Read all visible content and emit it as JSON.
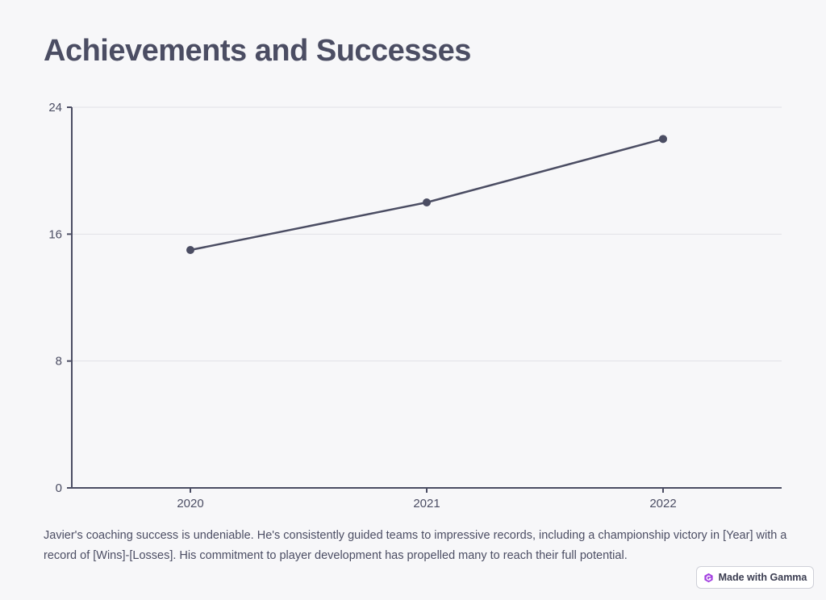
{
  "page": {
    "title": "Achievements and Successes",
    "body_text": "Javier's coaching success is undeniable. He's consistently guided teams to impressive records, including a championship victory in [Year] with a record of [Wins]-[Losses]. His commitment to player development has propelled many to reach their full potential."
  },
  "badge": {
    "label": "Made with Gamma",
    "icon": "gamma-logo-icon"
  },
  "chart_data": {
    "type": "line",
    "categories": [
      "2020",
      "2021",
      "2022"
    ],
    "series": [
      {
        "values": [
          15,
          18,
          22
        ]
      }
    ],
    "ylim": [
      0,
      24
    ],
    "yticks": [
      "0",
      "8",
      "16",
      "24"
    ],
    "grid": true,
    "line_color": "#4b4d63",
    "grid_color": "#e2e2e8"
  }
}
